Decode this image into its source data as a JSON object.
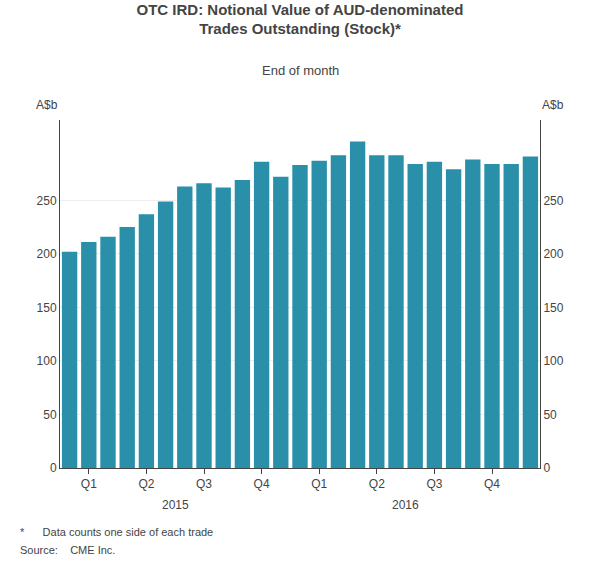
{
  "chart_data": {
    "type": "bar",
    "title": "OTC IRD: Notional Value of AUD-denominated\nTrades Outstanding (Stock)*",
    "subtitle": "End of month",
    "ylabel": "A$b",
    "y2label": "A$b",
    "categories": [
      null,
      "Q1",
      null,
      null,
      "Q2",
      null,
      null,
      "Q3",
      null,
      null,
      "Q4",
      null,
      null,
      "Q1",
      null,
      null,
      "Q2",
      null,
      null,
      "Q3",
      null,
      null,
      "Q4",
      null,
      null
    ],
    "values": [
      202,
      211,
      216,
      225,
      237,
      249,
      263,
      266,
      262,
      269,
      286,
      272,
      283,
      287,
      292,
      305,
      292,
      292,
      284,
      286,
      279,
      288,
      284,
      284,
      291
    ],
    "color": "#2a8fa8",
    "ylim": [
      0,
      325
    ],
    "yticks": [
      0,
      50,
      100,
      150,
      200,
      250
    ],
    "y2lim": [
      0,
      325
    ],
    "y2ticks": [
      0,
      50,
      100,
      150,
      200,
      250
    ],
    "grid": true,
    "annotations": [
      "2015",
      "2016"
    ],
    "footnotes": [
      "*      Data counts one side of each trade",
      "Source:    CME Inc."
    ]
  }
}
